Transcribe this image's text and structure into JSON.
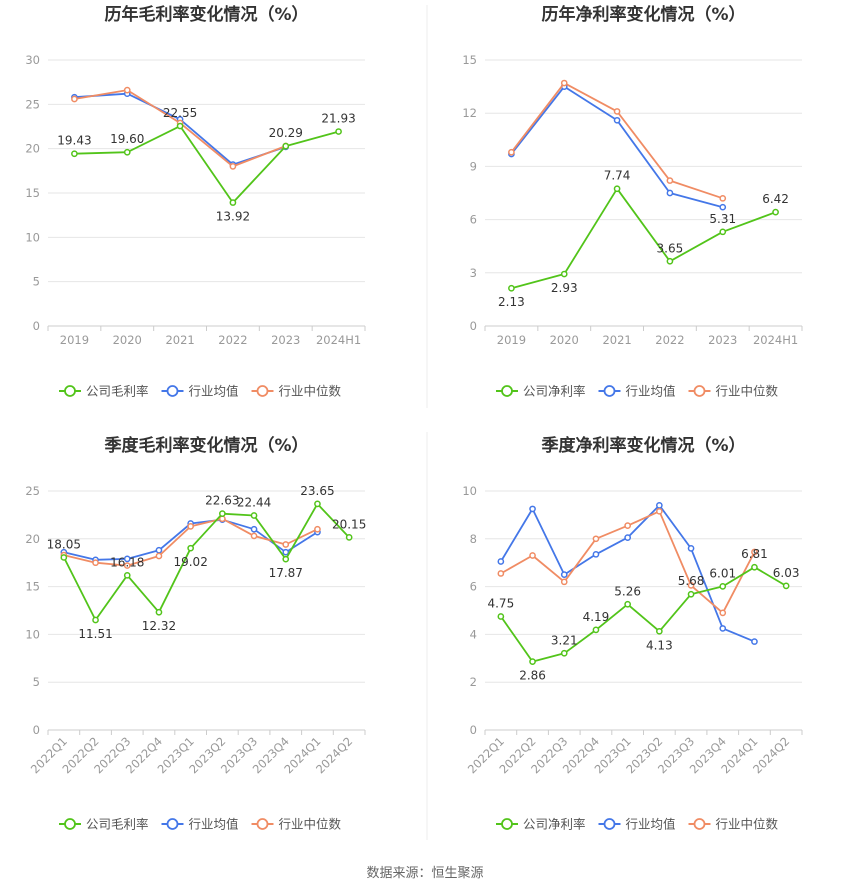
{
  "colors": {
    "company": "#52c41a",
    "industry_avg": "#4477e8",
    "industry_median": "#f08c64",
    "grid": "#e6e6e6",
    "axis": "#cccccc",
    "divider": "#eeeeee"
  },
  "source_text": "数据来源：恒生聚源",
  "chart_data": [
    {
      "type": "line",
      "title": "历年毛利率变化情况（%）",
      "categories": [
        "2019",
        "2020",
        "2021",
        "2022",
        "2023",
        "2024H1"
      ],
      "ylim": [
        0,
        30
      ],
      "yticks": [
        0,
        5,
        10,
        15,
        20,
        25,
        30
      ],
      "rotate_x": false,
      "legend_position": "bottom",
      "series": [
        {
          "name": "公司毛利率",
          "color": "#52c41a",
          "labeled": true,
          "values": [
            19.43,
            19.6,
            22.55,
            13.92,
            20.29,
            21.93
          ]
        },
        {
          "name": "行业均值",
          "color": "#4477e8",
          "labeled": false,
          "values": [
            25.8,
            26.2,
            23.3,
            18.2,
            20.2,
            null
          ]
        },
        {
          "name": "行业中位数",
          "color": "#f08c64",
          "labeled": false,
          "values": [
            25.6,
            26.6,
            22.9,
            18.0,
            20.3,
            null
          ]
        }
      ],
      "point_labels": [
        "19.43",
        "19.60",
        "22.55",
        "13.92",
        "20.29",
        "21.93"
      ]
    },
    {
      "type": "line",
      "title": "历年净利率变化情况（%）",
      "categories": [
        "2019",
        "2020",
        "2021",
        "2022",
        "2023",
        "2024H1"
      ],
      "ylim": [
        0,
        15
      ],
      "yticks": [
        0,
        3,
        6,
        9,
        12,
        15
      ],
      "rotate_x": false,
      "legend_position": "bottom",
      "series": [
        {
          "name": "公司净利率",
          "color": "#52c41a",
          "labeled": true,
          "values": [
            2.13,
            2.93,
            7.74,
            3.65,
            5.31,
            6.42
          ]
        },
        {
          "name": "行业均值",
          "color": "#4477e8",
          "labeled": false,
          "values": [
            9.7,
            13.5,
            11.6,
            7.5,
            6.7,
            null
          ]
        },
        {
          "name": "行业中位数",
          "color": "#f08c64",
          "labeled": false,
          "values": [
            9.8,
            13.7,
            12.1,
            8.2,
            7.2,
            null
          ]
        }
      ],
      "point_labels": [
        "2.13",
        "2.93",
        "7.74",
        "3.65",
        "5.31",
        "6.42"
      ]
    },
    {
      "type": "line",
      "title": "季度毛利率变化情况（%）",
      "categories": [
        "2022Q1",
        "2022Q2",
        "2022Q3",
        "2022Q4",
        "2023Q1",
        "2023Q2",
        "2023Q3",
        "2023Q4",
        "2024Q1",
        "2024Q2"
      ],
      "ylim": [
        0,
        25
      ],
      "yticks": [
        0,
        5,
        10,
        15,
        20,
        25
      ],
      "rotate_x": true,
      "legend_position": "bottom",
      "series": [
        {
          "name": "公司毛利率",
          "color": "#52c41a",
          "labeled": true,
          "values": [
            18.05,
            11.51,
            16.18,
            12.32,
            19.02,
            22.63,
            22.44,
            17.87,
            23.65,
            20.15
          ]
        },
        {
          "name": "行业均值",
          "color": "#4477e8",
          "labeled": false,
          "values": [
            18.6,
            17.8,
            17.9,
            18.8,
            21.6,
            22.0,
            21.0,
            18.6,
            20.7,
            null
          ]
        },
        {
          "name": "行业中位数",
          "color": "#f08c64",
          "labeled": false,
          "values": [
            18.3,
            17.5,
            17.2,
            18.2,
            21.3,
            22.1,
            20.3,
            19.4,
            21.0,
            null
          ]
        }
      ],
      "point_labels": [
        "18.05",
        "11.51",
        "16.18",
        "12.32",
        "19.02",
        "22.63",
        "22.44",
        "17.87",
        "23.65",
        "20.15"
      ]
    },
    {
      "type": "line",
      "title": "季度净利率变化情况（%）",
      "categories": [
        "2022Q1",
        "2022Q2",
        "2022Q3",
        "2022Q4",
        "2023Q1",
        "2023Q2",
        "2023Q3",
        "2023Q4",
        "2024Q1",
        "2024Q2"
      ],
      "ylim": [
        0,
        10
      ],
      "yticks": [
        0,
        2,
        4,
        6,
        8,
        10
      ],
      "rotate_x": true,
      "legend_position": "bottom",
      "series": [
        {
          "name": "公司净利率",
          "color": "#52c41a",
          "labeled": true,
          "values": [
            4.75,
            2.86,
            3.21,
            4.19,
            5.26,
            4.13,
            5.68,
            6.01,
            6.81,
            6.03
          ]
        },
        {
          "name": "行业均值",
          "color": "#4477e8",
          "labeled": false,
          "values": [
            7.05,
            9.25,
            6.5,
            7.35,
            8.05,
            9.4,
            7.6,
            4.25,
            3.7,
            null
          ]
        },
        {
          "name": "行业中位数",
          "color": "#f08c64",
          "labeled": false,
          "values": [
            6.55,
            7.3,
            6.2,
            8.0,
            8.55,
            9.15,
            6.05,
            4.9,
            7.45,
            null
          ]
        }
      ],
      "point_labels": [
        "4.75",
        "2.86",
        "3.21",
        "4.19",
        "5.26",
        "4.13",
        "5.68",
        "6.01",
        "6.81",
        "6.03"
      ]
    }
  ]
}
